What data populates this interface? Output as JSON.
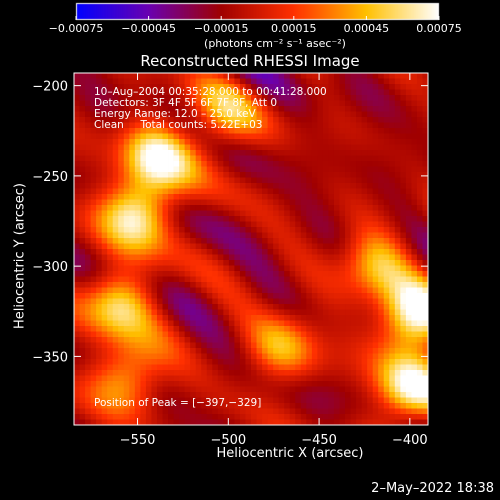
{
  "chart_data": {
    "type": "heatmap",
    "title": "Reconstructed RHESSI Image",
    "xlabel": "Heliocentric X (arcsec)",
    "ylabel": "Heliocentric Y (arcsec)",
    "xlim": [
      -585,
      -390
    ],
    "ylim": [
      -388,
      -193
    ],
    "xticks": [
      -550,
      -500,
      -450,
      -400
    ],
    "xtick_labels": [
      "−550",
      "−500",
      "−450",
      "−400"
    ],
    "yticks": [
      -200,
      -250,
      -300,
      -350
    ],
    "ytick_labels": [
      "−200",
      "−250",
      "−300",
      "−350"
    ],
    "colorbar": {
      "range": [
        -0.00075,
        0.00075
      ],
      "ticks": [
        -0.00075,
        -0.00045,
        -0.00015,
        0.00015,
        0.00045,
        0.00075
      ],
      "tick_labels": [
        "−0.00075",
        "−0.00045",
        "−0.00015",
        "0.00015",
        "0.00045",
        "0.00075"
      ],
      "unit_label": "(photons cm⁻² s⁻¹ asec⁻²)",
      "colors": [
        "#0000ff",
        "#6a00b0",
        "#a00000",
        "#ff3000",
        "#ffc000",
        "#ffffff"
      ]
    },
    "annotations": [
      "10–Aug–2004 00:35:28.000 to 00:41:28.000",
      "Detectors: 3F 4F 5F 6F 7F 8F, Att 0",
      "Energy Range: 12.0 – 25.0 keV",
      "Clean     Total counts: 5.22E+03"
    ],
    "peak_label": "Position of Peak = [−397,−329]",
    "peak_position": [
      -397,
      -329
    ],
    "hot_regions": [
      {
        "x": -550,
        "y": -270,
        "value": 0.0006
      },
      {
        "x": -540,
        "y": -240,
        "value": 0.0005
      },
      {
        "x": -560,
        "y": -320,
        "value": 0.00045
      },
      {
        "x": -555,
        "y": -360,
        "value": 0.0004
      },
      {
        "x": -505,
        "y": -220,
        "value": 0.0003
      },
      {
        "x": -470,
        "y": -345,
        "value": 0.0003
      },
      {
        "x": -397,
        "y": -329,
        "value": 0.00075
      },
      {
        "x": -400,
        "y": -370,
        "value": 0.0006
      },
      {
        "x": -420,
        "y": -300,
        "value": 0.00035
      }
    ]
  },
  "footer": {
    "timestamp": "2–May–2022 18:38"
  }
}
